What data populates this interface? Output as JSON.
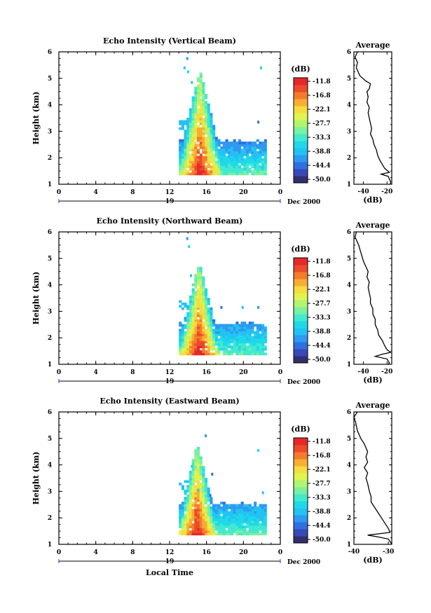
{
  "colors": {
    "scale": [
      "#31306f",
      "#3a49b8",
      "#2f6fe0",
      "#2e9af0",
      "#24c2f3",
      "#1fd9e9",
      "#43e9cf",
      "#7bf0a0",
      "#b2f46e",
      "#dff34f",
      "#f6dc3f",
      "#f7ad34",
      "#f47b2c",
      "#ec4a2a",
      "#e52828"
    ]
  },
  "chart_data": [
    {
      "type": "heatmap",
      "title": "Echo Intensity (Vertical Beam)",
      "ylabel": "Height (km)",
      "ylim": [
        1,
        6
      ],
      "y_ticks": [
        "1",
        "2",
        "3",
        "4",
        "5",
        "6"
      ],
      "xlim": [
        0,
        24
      ],
      "x_ticks": [
        "0",
        "4",
        "8",
        "12",
        "16",
        "20",
        "0"
      ],
      "date_day": "19",
      "date_month": "Dec 2000",
      "colorbar": {
        "unit_label": "(dB)",
        "tick_labels": [
          "-11.8",
          "-16.8",
          "-22.1",
          "-27.7",
          "-33.3",
          "-38.8",
          "-44.4",
          "-50.0"
        ]
      },
      "features": {
        "core_center_hr": 15.3,
        "core_top_km": 5.3,
        "layer_top_km": 2.6,
        "layer_end_hr": 22.5,
        "data_start_hr": 13.0,
        "data_base_km": 1.35,
        "scatter_points": [
          [
            13.8,
            5.8
          ],
          [
            13.5,
            5.45
          ],
          [
            13.9,
            5.3
          ],
          [
            21.8,
            5.45
          ],
          [
            14.3,
            4.9
          ],
          [
            21.5,
            3.4
          ]
        ]
      },
      "profile": {
        "title": "Average",
        "xlabel": "(dB)",
        "x_ticks": [
          "-40",
          "-20"
        ],
        "xlim": [
          -48,
          -16
        ],
        "ylim": [
          1,
          6
        ],
        "points": [
          [
            -45,
            6.0
          ],
          [
            -47,
            5.8
          ],
          [
            -45,
            5.6
          ],
          [
            -46,
            5.4
          ],
          [
            -43,
            5.1
          ],
          [
            -38,
            4.9
          ],
          [
            -34,
            4.8
          ],
          [
            -35,
            4.6
          ],
          [
            -37,
            4.5
          ],
          [
            -36,
            4.3
          ],
          [
            -37,
            4.1
          ],
          [
            -35,
            3.9
          ],
          [
            -36,
            3.7
          ],
          [
            -35,
            3.5
          ],
          [
            -34,
            3.3
          ],
          [
            -33,
            3.1
          ],
          [
            -34,
            2.9
          ],
          [
            -32,
            2.7
          ],
          [
            -31,
            2.5
          ],
          [
            -29,
            2.3
          ],
          [
            -28,
            2.1
          ],
          [
            -26,
            1.9
          ],
          [
            -24,
            1.75
          ],
          [
            -22,
            1.6
          ],
          [
            -18,
            1.45
          ],
          [
            -25,
            1.38
          ],
          [
            -19,
            1.3
          ],
          [
            -17,
            1.1
          ],
          [
            -17,
            1.0
          ]
        ]
      }
    },
    {
      "type": "heatmap",
      "title": "Echo Intensity (Northward Beam)",
      "ylabel": "Height (km)",
      "ylim": [
        1,
        6
      ],
      "y_ticks": [
        "1",
        "2",
        "3",
        "4",
        "5",
        "6"
      ],
      "xlim": [
        0,
        24
      ],
      "x_ticks": [
        "0",
        "4",
        "8",
        "12",
        "16",
        "20",
        "0"
      ],
      "date_day": "19",
      "date_month": "Dec 2000",
      "colorbar": {
        "unit_label": "(dB)",
        "tick_labels": [
          "-11.8",
          "-16.8",
          "-22.1",
          "-27.7",
          "-33.3",
          "-38.8",
          "-44.4",
          "-50.0"
        ]
      },
      "features": {
        "core_center_hr": 15.2,
        "core_top_km": 4.9,
        "layer_top_km": 2.5,
        "layer_end_hr": 22.5,
        "data_start_hr": 13.0,
        "data_base_km": 1.35,
        "scatter_points": [
          [
            13.8,
            5.8
          ],
          [
            14.0,
            5.5
          ],
          [
            14.2,
            4.4
          ],
          [
            17.5,
            3.2
          ],
          [
            21.5,
            3.2
          ],
          [
            19.8,
            3.2
          ]
        ]
      },
      "profile": {
        "title": "Average",
        "xlabel": "(dB)",
        "x_ticks": [
          "-40",
          "-20"
        ],
        "xlim": [
          -48,
          -16
        ],
        "ylim": [
          1,
          6
        ],
        "points": [
          [
            -46,
            6.0
          ],
          [
            -47,
            5.8
          ],
          [
            -44,
            5.5
          ],
          [
            -42,
            5.2
          ],
          [
            -40,
            4.9
          ],
          [
            -38,
            4.7
          ],
          [
            -36,
            4.5
          ],
          [
            -37,
            4.3
          ],
          [
            -35,
            4.1
          ],
          [
            -36,
            3.9
          ],
          [
            -35,
            3.7
          ],
          [
            -34,
            3.5
          ],
          [
            -34,
            3.3
          ],
          [
            -32,
            3.1
          ],
          [
            -32,
            2.9
          ],
          [
            -30,
            2.7
          ],
          [
            -30,
            2.5
          ],
          [
            -28,
            2.3
          ],
          [
            -27,
            2.1
          ],
          [
            -24,
            1.9
          ],
          [
            -22,
            1.7
          ],
          [
            -20,
            1.55
          ],
          [
            -17,
            1.45
          ],
          [
            -24,
            1.38
          ],
          [
            -30,
            1.3
          ],
          [
            -20,
            1.2
          ],
          [
            -18,
            1.05
          ],
          [
            -19,
            1.0
          ]
        ]
      }
    },
    {
      "type": "heatmap",
      "title": "Echo Intensity (Eastward Beam)",
      "ylabel": "Height (km)",
      "ylim": [
        1,
        6
      ],
      "y_ticks": [
        "1",
        "2",
        "3",
        "4",
        "5",
        "6"
      ],
      "xlim": [
        0,
        24
      ],
      "x_ticks": [
        "0",
        "4",
        "8",
        "12",
        "16",
        "20",
        "0"
      ],
      "date_day": "19",
      "date_month": "Dec 2000",
      "xlabel": "Local Time",
      "colorbar": {
        "unit_label": "(dB)",
        "tick_labels": [
          "-11.8",
          "-16.8",
          "-22.1",
          "-27.7",
          "-33.3",
          "-38.8",
          "-44.4",
          "-50.0"
        ]
      },
      "features": {
        "core_center_hr": 15.0,
        "core_top_km": 4.8,
        "layer_top_km": 2.5,
        "layer_end_hr": 22.5,
        "data_start_hr": 13.0,
        "data_base_km": 1.35,
        "scatter_points": [
          [
            15.8,
            5.15
          ],
          [
            21.5,
            4.6
          ],
          [
            14.3,
            4.0
          ],
          [
            16.5,
            3.7
          ],
          [
            22.0,
            3.0
          ],
          [
            16.3,
            2.9
          ],
          [
            15.0,
            3.1
          ]
        ]
      },
      "profile": {
        "title": "Average",
        "xlabel": "(dB)",
        "x_ticks": [
          "-40",
          "-30"
        ],
        "xlim": [
          -40,
          -29
        ],
        "ylim": [
          1,
          6
        ],
        "points": [
          [
            -39,
            6.0
          ],
          [
            -40,
            5.8
          ],
          [
            -39.5,
            5.6
          ],
          [
            -39,
            5.3
          ],
          [
            -38,
            5.0
          ],
          [
            -37,
            4.8
          ],
          [
            -36,
            4.5
          ],
          [
            -36.5,
            4.3
          ],
          [
            -36,
            4.1
          ],
          [
            -37,
            3.9
          ],
          [
            -36,
            3.7
          ],
          [
            -36.5,
            3.5
          ],
          [
            -36,
            3.3
          ],
          [
            -35.5,
            3.0
          ],
          [
            -35,
            2.8
          ],
          [
            -35,
            2.6
          ],
          [
            -34,
            2.4
          ],
          [
            -33,
            2.2
          ],
          [
            -32,
            2.0
          ],
          [
            -31,
            1.8
          ],
          [
            -30,
            1.6
          ],
          [
            -29.5,
            1.45
          ],
          [
            -36,
            1.35
          ],
          [
            -33,
            1.28
          ],
          [
            -30,
            1.2
          ],
          [
            -29.2,
            1.05
          ],
          [
            -29,
            1.0
          ]
        ]
      }
    }
  ]
}
